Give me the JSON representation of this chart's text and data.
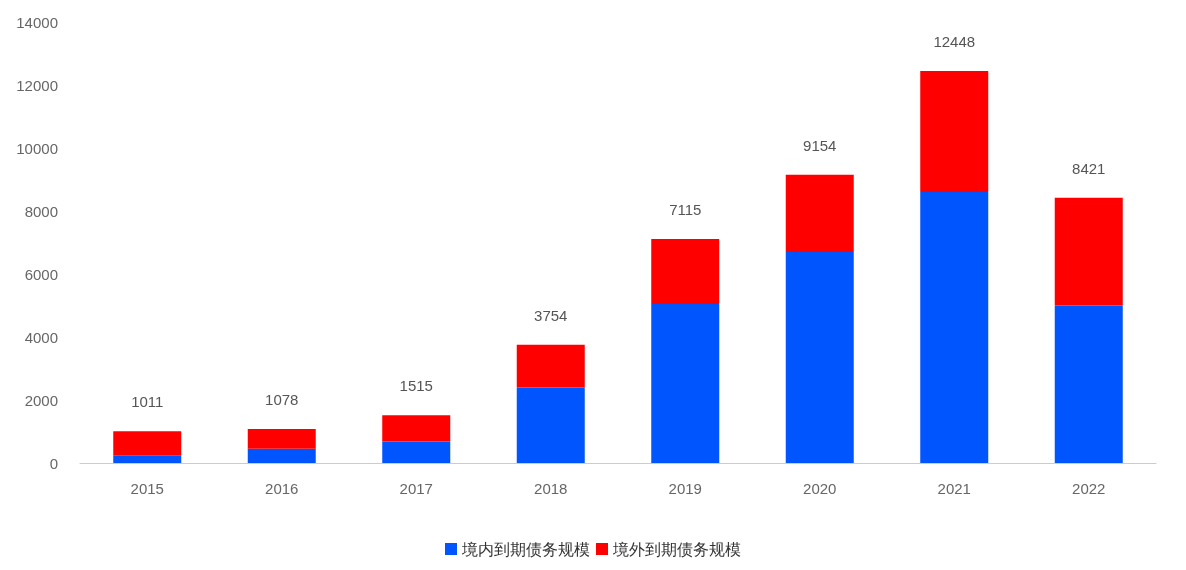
{
  "chart_data": {
    "type": "bar",
    "stacked": true,
    "categories": [
      "2015",
      "2016",
      "2017",
      "2018",
      "2019",
      "2020",
      "2021",
      "2022"
    ],
    "series": [
      {
        "name": "境内到期债务规模",
        "color": "#0055ff",
        "values": [
          250,
          450,
          680,
          2400,
          5050,
          6700,
          8600,
          5000
        ]
      },
      {
        "name": "境外到期债务规模",
        "color": "#ff0000",
        "values": [
          761,
          628,
          835,
          1354,
          2065,
          2454,
          3848,
          3421
        ]
      }
    ],
    "totals": [
      "1011",
      "1078",
      "1515",
      "3754",
      "7115",
      "9154",
      "12448",
      "8421"
    ],
    "ylim": [
      0,
      14000
    ],
    "yticks": [
      0,
      2000,
      4000,
      6000,
      8000,
      10000,
      12000,
      14000
    ],
    "grid": false,
    "legend": "bottom"
  }
}
